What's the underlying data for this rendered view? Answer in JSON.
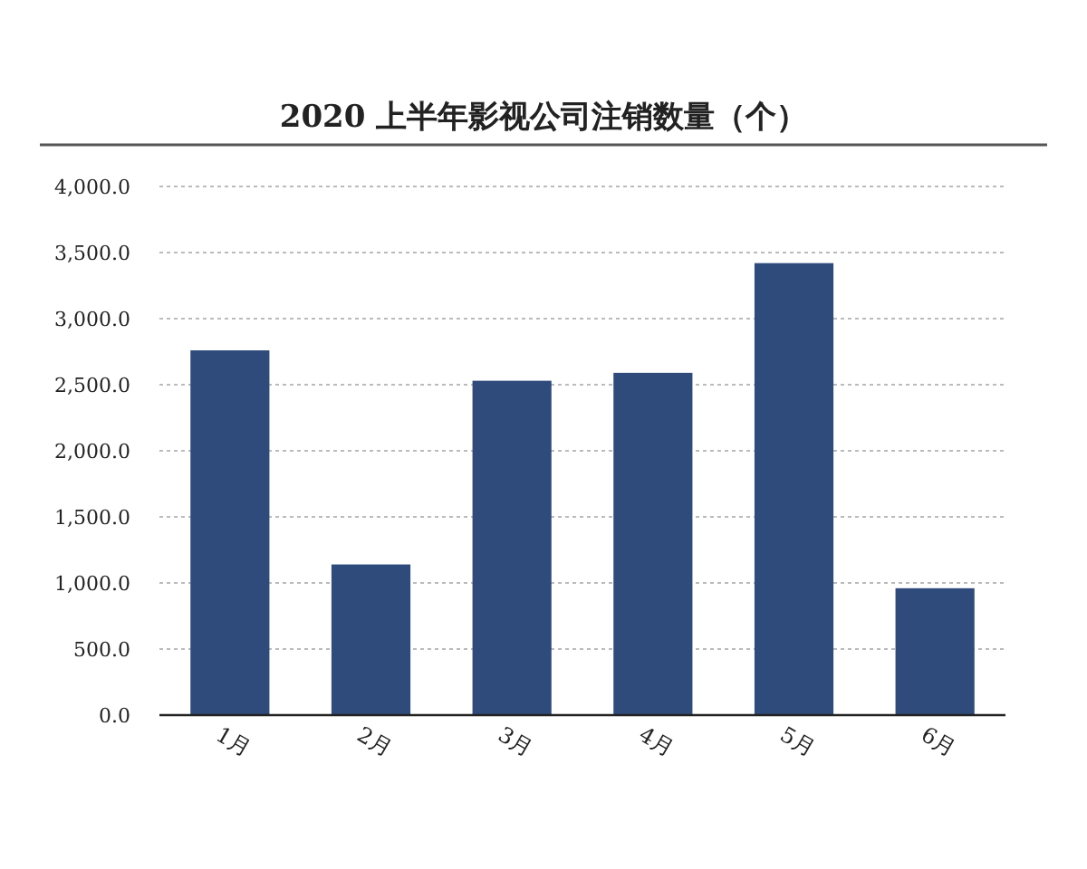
{
  "chart_data": {
    "type": "bar",
    "title": "2020 上半年影视公司注销数量（个）",
    "categories": [
      "1月",
      "2月",
      "3月",
      "4月",
      "5月",
      "6月"
    ],
    "values": [
      2760,
      1140,
      2530,
      2590,
      3420,
      960
    ],
    "color": "#2f4b7c",
    "ylim": [
      0,
      4000
    ],
    "yticks": [
      {
        "value": 0,
        "label": "0.0"
      },
      {
        "value": 500,
        "label": "500.0"
      },
      {
        "value": 1000,
        "label": "1,000.0"
      },
      {
        "value": 1500,
        "label": "1,500.0"
      },
      {
        "value": 2000,
        "label": "2,000.0"
      },
      {
        "value": 2500,
        "label": "2,500.0"
      },
      {
        "value": 3000,
        "label": "3,000.0"
      },
      {
        "value": 3500,
        "label": "3,500.0"
      },
      {
        "value": 4000,
        "label": "4,000.0"
      }
    ],
    "grid": "y"
  }
}
